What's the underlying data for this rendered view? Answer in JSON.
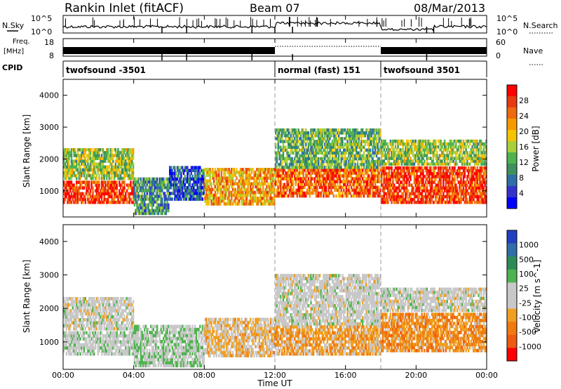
{
  "header": {
    "station": "Rankin Inlet (fitACF)",
    "beam": "Beam 07",
    "date": "08/Mar/2013"
  },
  "noise_panel": {
    "left_label": "N.Sky",
    "left_ticks": [
      "10^5",
      "10^0"
    ],
    "right_ticks": [
      "10^5",
      "10^0"
    ],
    "right_label": "N.Search"
  },
  "freq_panel": {
    "left_label_line1": "Freq.",
    "left_label_line2": "[MHz]",
    "left_ticks": [
      "18",
      "8"
    ],
    "right_ticks": [
      "60",
      "0"
    ],
    "right_label": "Nave"
  },
  "cpid_panel": {
    "label": "CPID",
    "segments": [
      {
        "name": "twofsound -3501",
        "start_hour": 0,
        "end_hour": 12
      },
      {
        "name": "normal (fast) 151",
        "start_hour": 12,
        "end_hour": 18
      },
      {
        "name": "twofsound 3501",
        "start_hour": 18,
        "end_hour": 24
      }
    ]
  },
  "time_axis": {
    "label": "Time UT",
    "ticks": [
      "00:00",
      "04:00",
      "08:00",
      "12:00",
      "16:00",
      "20:00",
      "00:00"
    ]
  },
  "range_axis": {
    "label": "Slant Range [km]",
    "ticks": [
      "1000",
      "2000",
      "3000",
      "4000"
    ]
  },
  "colors": {
    "power_scale": [
      "#0000ff",
      "#3333cc",
      "#2f6ea8",
      "#3f8f5f",
      "#4fb44f",
      "#a8cf3a",
      "#f5c400",
      "#f79a00",
      "#ef6a10",
      "#e83a10",
      "#ff0000"
    ],
    "velocity_scale": [
      "#2040c0",
      "#2f6ea8",
      "#2e8b57",
      "#4fb44f",
      "#c8c8c8",
      "#c8c8c8",
      "#f0a020",
      "#f07a10",
      "#ef5a10",
      "#ff0000"
    ]
  },
  "chart_data": [
    {
      "type": "heatmap",
      "title": "",
      "xlabel": "",
      "ylabel": "Slant Range [km]",
      "x_range_hours": [
        0,
        24
      ],
      "ylim": [
        180,
        4500
      ],
      "colorbar": {
        "label": "Power [dB]",
        "ticks": [
          "28",
          "24",
          "20",
          "16",
          "12",
          "8",
          "4"
        ],
        "range": [
          0,
          30
        ]
      },
      "echo_regions": [
        {
          "t_start": 0.0,
          "t_end": 4.2,
          "range_min": 600,
          "range_max": 1350,
          "level": 26
        },
        {
          "t_start": 0.0,
          "t_end": 4.0,
          "range_min": 1350,
          "range_max": 2300,
          "level": 14
        },
        {
          "t_start": 4.0,
          "t_end": 6.0,
          "range_min": 250,
          "range_max": 1400,
          "level": 10
        },
        {
          "t_start": 6.0,
          "t_end": 8.0,
          "range_min": 700,
          "range_max": 1800,
          "level": 6
        },
        {
          "t_start": 8.0,
          "t_end": 12.0,
          "range_min": 550,
          "range_max": 1700,
          "level": 20
        },
        {
          "t_start": 12.0,
          "t_end": 18.0,
          "range_min": 800,
          "range_max": 1700,
          "level": 24
        },
        {
          "t_start": 12.0,
          "t_end": 18.0,
          "range_min": 1700,
          "range_max": 3000,
          "level": 12
        },
        {
          "t_start": 18.0,
          "t_end": 24.0,
          "range_min": 600,
          "range_max": 1800,
          "level": 26
        },
        {
          "t_start": 18.0,
          "t_end": 24.0,
          "range_min": 1800,
          "range_max": 2600,
          "level": 14
        }
      ]
    },
    {
      "type": "heatmap",
      "title": "",
      "xlabel": "Time UT",
      "ylabel": "Slant Range [km]",
      "x_range_hours": [
        0,
        24
      ],
      "ylim": [
        180,
        4500
      ],
      "colorbar": {
        "label": "Velocity [m s^-1]",
        "ticks": [
          "1000",
          "500",
          "100",
          "25",
          "-25",
          "-100",
          "-500",
          "-1000"
        ],
        "range": [
          -1000,
          1000
        ]
      },
      "echo_regions": [
        {
          "t_start": 0.0,
          "t_end": 4.2,
          "range_min": 600,
          "range_max": 1350,
          "level": 50
        },
        {
          "t_start": 0.0,
          "t_end": 4.0,
          "range_min": 1350,
          "range_max": 2300,
          "level": 0
        },
        {
          "t_start": 4.0,
          "t_end": 8.0,
          "range_min": 250,
          "range_max": 1500,
          "level": 150
        },
        {
          "t_start": 8.0,
          "t_end": 12.0,
          "range_min": 550,
          "range_max": 1700,
          "level": -200
        },
        {
          "t_start": 12.0,
          "t_end": 18.0,
          "range_min": 600,
          "range_max": 1500,
          "level": -300
        },
        {
          "t_start": 12.0,
          "t_end": 18.0,
          "range_min": 1500,
          "range_max": 3000,
          "level": 0
        },
        {
          "t_start": 18.0,
          "t_end": 24.0,
          "range_min": 700,
          "range_max": 1900,
          "level": -400
        },
        {
          "t_start": 18.0,
          "t_end": 24.0,
          "range_min": 1900,
          "range_max": 2600,
          "level": 0
        }
      ]
    }
  ]
}
